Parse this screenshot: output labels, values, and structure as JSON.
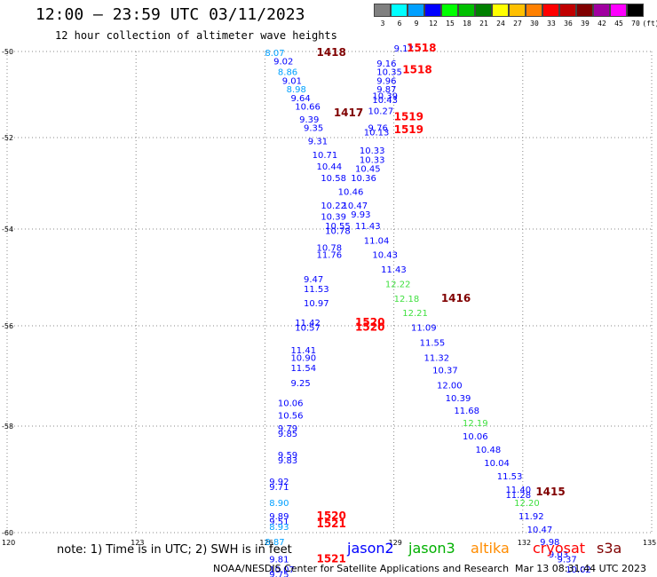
{
  "header": {
    "title": "12:00 – 23:59 UTC 03/11/2023",
    "subtitle": "12 hour collection of altimeter wave heights"
  },
  "legend": {
    "unit": "(ft)",
    "steps": [
      {
        "label": "3",
        "color": "#808080"
      },
      {
        "label": "6",
        "color": "#00ffff"
      },
      {
        "label": "9",
        "color": "#00a0ff"
      },
      {
        "label": "12",
        "color": "#0000ff"
      },
      {
        "label": "15",
        "color": "#00ff00"
      },
      {
        "label": "18",
        "color": "#00c000"
      },
      {
        "label": "21",
        "color": "#008000"
      },
      {
        "label": "24",
        "color": "#ffff00"
      },
      {
        "label": "27",
        "color": "#ffc000"
      },
      {
        "label": "30",
        "color": "#ff8000"
      },
      {
        "label": "33",
        "color": "#ff0000"
      },
      {
        "label": "36",
        "color": "#c00000"
      },
      {
        "label": "39",
        "color": "#800000"
      },
      {
        "label": "42",
        "color": "#a000a0"
      },
      {
        "label": "45",
        "color": "#ff00ff"
      },
      {
        "label": "70",
        "color": "#000000"
      }
    ]
  },
  "map": {
    "lon_range": [
      120,
      135
    ],
    "lat_range": [
      -60,
      -50
    ],
    "lon_ticks": [
      "120",
      "123",
      "126",
      "129",
      "132",
      "135"
    ],
    "lat_ticks": [
      "-50",
      "-52",
      "-54",
      "-56",
      "-58",
      "-60"
    ],
    "grid": "dotted"
  },
  "chart_data": {
    "type": "scatter",
    "title": "12:00 – 23:59 UTC 03/11/2023",
    "xlabel": "",
    "ylabel": "",
    "xlim": [
      120,
      135
    ],
    "ylim": [
      -60,
      -50
    ],
    "swh_points": [
      {
        "lon": 129.0,
        "lat": -50.0,
        "v": "9.12",
        "c": "#0000ff"
      },
      {
        "lon": 126.0,
        "lat": -50.1,
        "v": "8.07",
        "c": "#00a0ff"
      },
      {
        "lon": 126.2,
        "lat": -50.3,
        "v": "9.02",
        "c": "#0000ff"
      },
      {
        "lon": 128.6,
        "lat": -50.35,
        "v": "9.16",
        "c": "#0000ff"
      },
      {
        "lon": 126.3,
        "lat": -50.55,
        "v": "8.86",
        "c": "#00a0ff"
      },
      {
        "lon": 128.6,
        "lat": -50.55,
        "v": "10.35",
        "c": "#0000ff"
      },
      {
        "lon": 126.4,
        "lat": -50.75,
        "v": "9.01",
        "c": "#0000ff"
      },
      {
        "lon": 128.6,
        "lat": -50.75,
        "v": "9.96",
        "c": "#0000ff"
      },
      {
        "lon": 126.5,
        "lat": -50.95,
        "v": "8.98",
        "c": "#00a0ff"
      },
      {
        "lon": 128.6,
        "lat": -50.95,
        "v": "9.87",
        "c": "#0000ff"
      },
      {
        "lon": 126.6,
        "lat": -51.15,
        "v": "9.64",
        "c": "#0000ff"
      },
      {
        "lon": 128.5,
        "lat": -51.1,
        "v": "10.39",
        "c": "#0000ff"
      },
      {
        "lon": 128.5,
        "lat": -51.2,
        "v": "10.43",
        "c": "#0000ff"
      },
      {
        "lon": 126.7,
        "lat": -51.35,
        "v": "10.66",
        "c": "#0000ff"
      },
      {
        "lon": 128.4,
        "lat": -51.45,
        "v": "10.27",
        "c": "#0000ff"
      },
      {
        "lon": 126.8,
        "lat": -51.65,
        "v": "9.39",
        "c": "#0000ff"
      },
      {
        "lon": 128.4,
        "lat": -51.85,
        "v": "9.76",
        "c": "#0000ff"
      },
      {
        "lon": 126.9,
        "lat": -51.85,
        "v": "9.35",
        "c": "#0000ff"
      },
      {
        "lon": 128.3,
        "lat": -51.95,
        "v": "10.13",
        "c": "#0000ff"
      },
      {
        "lon": 127.0,
        "lat": -52.15,
        "v": "9.31",
        "c": "#0000ff"
      },
      {
        "lon": 128.2,
        "lat": -52.35,
        "v": "10.33",
        "c": "#0000ff"
      },
      {
        "lon": 127.1,
        "lat": -52.45,
        "v": "10.71",
        "c": "#0000ff"
      },
      {
        "lon": 128.2,
        "lat": -52.55,
        "v": "10.33",
        "c": "#0000ff"
      },
      {
        "lon": 127.2,
        "lat": -52.7,
        "v": "10.44",
        "c": "#0000ff"
      },
      {
        "lon": 128.1,
        "lat": -52.75,
        "v": "10.45",
        "c": "#0000ff"
      },
      {
        "lon": 127.3,
        "lat": -52.95,
        "v": "10.58",
        "c": "#0000ff"
      },
      {
        "lon": 128.0,
        "lat": -52.95,
        "v": "10.36",
        "c": "#0000ff"
      },
      {
        "lon": 127.7,
        "lat": -53.25,
        "v": "10.46",
        "c": "#0000ff"
      },
      {
        "lon": 127.3,
        "lat": -53.55,
        "v": "10.22",
        "c": "#0000ff"
      },
      {
        "lon": 127.8,
        "lat": -53.55,
        "v": "10.47",
        "c": "#0000ff"
      },
      {
        "lon": 128.0,
        "lat": -53.75,
        "v": "9.93",
        "c": "#0000ff"
      },
      {
        "lon": 127.3,
        "lat": -53.8,
        "v": "10.39",
        "c": "#0000ff"
      },
      {
        "lon": 127.4,
        "lat": -54.0,
        "v": "10.55",
        "c": "#0000ff"
      },
      {
        "lon": 128.1,
        "lat": -54.0,
        "v": "11.43",
        "c": "#0000ff"
      },
      {
        "lon": 127.4,
        "lat": -54.1,
        "v": "10.78",
        "c": "#0000ff"
      },
      {
        "lon": 128.3,
        "lat": -54.3,
        "v": "11.04",
        "c": "#0000ff"
      },
      {
        "lon": 127.2,
        "lat": -54.45,
        "v": "10.78",
        "c": "#0000ff"
      },
      {
        "lon": 128.5,
        "lat": -54.6,
        "v": "10.43",
        "c": "#0000ff"
      },
      {
        "lon": 127.2,
        "lat": -54.6,
        "v": "11.76",
        "c": "#0000ff"
      },
      {
        "lon": 128.7,
        "lat": -54.9,
        "v": "11.43",
        "c": "#0000ff"
      },
      {
        "lon": 126.9,
        "lat": -55.1,
        "v": "9.47",
        "c": "#0000ff"
      },
      {
        "lon": 128.8,
        "lat": -55.2,
        "v": "12.22",
        "c": "#40e040"
      },
      {
        "lon": 126.9,
        "lat": -55.3,
        "v": "11.53",
        "c": "#0000ff"
      },
      {
        "lon": 129.0,
        "lat": -55.5,
        "v": "12.18",
        "c": "#40e040"
      },
      {
        "lon": 126.9,
        "lat": -55.6,
        "v": "10.97",
        "c": "#0000ff"
      },
      {
        "lon": 129.2,
        "lat": -55.8,
        "v": "12.21",
        "c": "#40e040"
      },
      {
        "lon": 126.7,
        "lat": -56.0,
        "v": "11.42",
        "c": "#0000ff"
      },
      {
        "lon": 126.7,
        "lat": -56.1,
        "v": "10.57",
        "c": "#0000ff"
      },
      {
        "lon": 129.4,
        "lat": -56.1,
        "v": "11.09",
        "c": "#0000ff"
      },
      {
        "lon": 129.6,
        "lat": -56.4,
        "v": "11.55",
        "c": "#0000ff"
      },
      {
        "lon": 126.6,
        "lat": -56.55,
        "v": "11.41",
        "c": "#0000ff"
      },
      {
        "lon": 129.7,
        "lat": -56.7,
        "v": "11.32",
        "c": "#0000ff"
      },
      {
        "lon": 126.6,
        "lat": -56.7,
        "v": "10.90",
        "c": "#0000ff"
      },
      {
        "lon": 126.6,
        "lat": -56.9,
        "v": "11.54",
        "c": "#0000ff"
      },
      {
        "lon": 129.9,
        "lat": -56.95,
        "v": "10.37",
        "c": "#0000ff"
      },
      {
        "lon": 126.6,
        "lat": -57.2,
        "v": "9.25",
        "c": "#0000ff"
      },
      {
        "lon": 130.0,
        "lat": -57.25,
        "v": "12.00",
        "c": "#0000ff"
      },
      {
        "lon": 130.2,
        "lat": -57.5,
        "v": "10.39",
        "c": "#0000ff"
      },
      {
        "lon": 126.3,
        "lat": -57.6,
        "v": "10.06",
        "c": "#0000ff"
      },
      {
        "lon": 130.4,
        "lat": -57.75,
        "v": "11.68",
        "c": "#0000ff"
      },
      {
        "lon": 126.3,
        "lat": -57.85,
        "v": "10.56",
        "c": "#0000ff"
      },
      {
        "lon": 130.6,
        "lat": -58.0,
        "v": "12.19",
        "c": "#40e040"
      },
      {
        "lon": 126.3,
        "lat": -58.1,
        "v": "9.79",
        "c": "#0000ff"
      },
      {
        "lon": 126.3,
        "lat": -58.2,
        "v": "9.85",
        "c": "#0000ff"
      },
      {
        "lon": 130.6,
        "lat": -58.25,
        "v": "10.06",
        "c": "#0000ff"
      },
      {
        "lon": 130.9,
        "lat": -58.5,
        "v": "10.48",
        "c": "#0000ff"
      },
      {
        "lon": 126.3,
        "lat": -58.6,
        "v": "9.59",
        "c": "#0000ff"
      },
      {
        "lon": 126.3,
        "lat": -58.7,
        "v": "9.83",
        "c": "#0000ff"
      },
      {
        "lon": 131.1,
        "lat": -58.75,
        "v": "10.04",
        "c": "#0000ff"
      },
      {
        "lon": 131.4,
        "lat": -59.0,
        "v": "11.53",
        "c": "#0000ff"
      },
      {
        "lon": 126.1,
        "lat": -59.1,
        "v": "9.92",
        "c": "#0000ff"
      },
      {
        "lon": 126.1,
        "lat": -59.2,
        "v": "9.71",
        "c": "#0000ff"
      },
      {
        "lon": 131.6,
        "lat": -59.25,
        "v": "11.40",
        "c": "#0000ff"
      },
      {
        "lon": 131.6,
        "lat": -59.35,
        "v": "11.28",
        "c": "#0000ff"
      },
      {
        "lon": 126.1,
        "lat": -59.5,
        "v": "8.90",
        "c": "#00a0ff"
      },
      {
        "lon": 131.8,
        "lat": -59.5,
        "v": "12.20",
        "c": "#40e040"
      },
      {
        "lon": 126.1,
        "lat": -59.75,
        "v": "9.89",
        "c": "#0000ff"
      },
      {
        "lon": 131.9,
        "lat": -59.75,
        "v": "11.92",
        "c": "#0000ff"
      },
      {
        "lon": 126.1,
        "lat": -59.85,
        "v": "9.51",
        "c": "#0000ff"
      },
      {
        "lon": 126.1,
        "lat": -59.95,
        "v": "8.93",
        "c": "#00a0ff"
      },
      {
        "lon": 132.1,
        "lat": -60.0,
        "v": "10.47",
        "c": "#0000ff"
      },
      {
        "lon": 126.0,
        "lat": -60.25,
        "v": "8.87",
        "c": "#00a0ff"
      },
      {
        "lon": 132.4,
        "lat": -60.25,
        "v": "9.98",
        "c": "#0000ff"
      },
      {
        "lon": 132.6,
        "lat": -60.5,
        "v": "9.03",
        "c": "#0000ff"
      },
      {
        "lon": 126.1,
        "lat": -60.6,
        "v": "9.81",
        "c": "#0000ff"
      },
      {
        "lon": 132.8,
        "lat": -60.6,
        "v": "9.37",
        "c": "#0000ff"
      },
      {
        "lon": 126.1,
        "lat": -60.8,
        "v": "10.07",
        "c": "#0000ff"
      },
      {
        "lon": 126.1,
        "lat": -60.9,
        "v": "9.75",
        "c": "#0000ff"
      },
      {
        "lon": 133.0,
        "lat": -60.8,
        "v": "10.02",
        "c": "#0000ff"
      }
    ],
    "pass_labels": [
      {
        "lon": 129.3,
        "lat": -50.0,
        "v": "1518",
        "c": "#ff0000"
      },
      {
        "lon": 127.2,
        "lat": -50.1,
        "v": "1418",
        "c": "#800000"
      },
      {
        "lon": 129.2,
        "lat": -50.5,
        "v": "1518",
        "c": "#ff0000"
      },
      {
        "lon": 127.6,
        "lat": -51.5,
        "v": "1417",
        "c": "#800000"
      },
      {
        "lon": 129.0,
        "lat": -51.6,
        "v": "1519",
        "c": "#ff0000"
      },
      {
        "lon": 129.0,
        "lat": -51.9,
        "v": "1519",
        "c": "#ff0000"
      },
      {
        "lon": 130.1,
        "lat": -55.5,
        "v": "1416",
        "c": "#800000"
      },
      {
        "lon": 128.1,
        "lat": -56.0,
        "v": "1520",
        "c": "#ff0000"
      },
      {
        "lon": 128.1,
        "lat": -56.1,
        "v": "1520",
        "c": "#ff0000"
      },
      {
        "lon": 132.3,
        "lat": -59.3,
        "v": "1415",
        "c": "#800000"
      },
      {
        "lon": 127.2,
        "lat": -59.75,
        "v": "1520",
        "c": "#ff0000"
      },
      {
        "lon": 127.2,
        "lat": -59.9,
        "v": "1521",
        "c": "#ff0000"
      },
      {
        "lon": 127.2,
        "lat": -60.6,
        "v": "1521",
        "c": "#ff0000"
      }
    ]
  },
  "footer": {
    "note": "note: 1) Time is in UTC; 2) SWH is in feet",
    "satellites": [
      {
        "name": "jason2",
        "color": "#0000ff"
      },
      {
        "name": "jason3",
        "color": "#00b000"
      },
      {
        "name": "altika",
        "color": "#ff8c00"
      },
      {
        "name": "cryosat",
        "color": "#ff0000"
      },
      {
        "name": "s3a",
        "color": "#800000"
      }
    ],
    "credit": "NOAA/NESDIS Center for Satellite Applications and Research",
    "timestamp": "Mar 13 08:31:44 UTC 2023"
  }
}
